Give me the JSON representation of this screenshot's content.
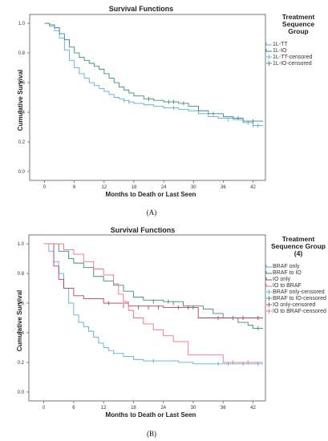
{
  "chart_data": [
    {
      "type": "line",
      "panel_label": "(A)",
      "title": "Survival Functions",
      "xlabel": "Months to Death or Last Seen",
      "ylabel": "Cumulative Survival",
      "xticks": [
        0,
        6,
        12,
        18,
        24,
        30,
        36,
        42
      ],
      "yticks": [
        "0.0",
        "0.2",
        "0.4",
        "0.6",
        "0.8",
        "1.0"
      ],
      "xlim": [
        -3,
        44.5
      ],
      "ylim": [
        -0.06,
        1.06
      ],
      "legend": {
        "title_lines": [
          "Treatment",
          "Sequence",
          "Group"
        ],
        "placement": "right",
        "entries": [
          {
            "label": "1L-TT",
            "color": "#5aaee0",
            "kind": "line"
          },
          {
            "label": "1L-IO",
            "color": "#3a8a7a",
            "kind": "line"
          },
          {
            "label": "1L-TT-censored",
            "color": "#5aaee0",
            "kind": "censor"
          },
          {
            "label": "1L-IO-censored",
            "color": "#3a8a7a",
            "kind": "censor"
          }
        ]
      },
      "series": [
        {
          "color": "#5aaee0",
          "steps": [
            [
              0,
              1.0
            ],
            [
              1,
              0.98
            ],
            [
              2,
              0.95
            ],
            [
              3,
              0.9
            ],
            [
              4,
              0.82
            ],
            [
              5,
              0.75
            ],
            [
              6,
              0.7
            ],
            [
              7,
              0.66
            ],
            [
              8,
              0.63
            ],
            [
              9,
              0.6
            ],
            [
              10,
              0.58
            ],
            [
              11,
              0.56
            ],
            [
              12,
              0.54
            ],
            [
              13,
              0.52
            ],
            [
              14,
              0.5
            ],
            [
              15,
              0.49
            ],
            [
              16,
              0.48
            ],
            [
              17,
              0.47
            ],
            [
              18,
              0.46
            ],
            [
              20,
              0.45
            ],
            [
              22,
              0.44
            ],
            [
              24,
              0.43
            ],
            [
              27,
              0.42
            ],
            [
              29,
              0.41
            ],
            [
              31,
              0.39
            ],
            [
              33,
              0.37
            ],
            [
              35,
              0.36
            ],
            [
              38,
              0.35
            ],
            [
              40,
              0.33
            ],
            [
              42,
              0.31
            ],
            [
              44,
              0.31
            ]
          ],
          "censor": [
            [
              16,
              0.48
            ],
            [
              17,
              0.47
            ],
            [
              26,
              0.43
            ],
            [
              37,
              0.35
            ],
            [
              41,
              0.33
            ],
            [
              42,
              0.31
            ],
            [
              43,
              0.31
            ]
          ]
        },
        {
          "color": "#3a8a7a",
          "steps": [
            [
              0,
              1.0
            ],
            [
              1,
              0.99
            ],
            [
              2,
              0.97
            ],
            [
              3,
              0.93
            ],
            [
              4,
              0.89
            ],
            [
              5,
              0.84
            ],
            [
              6,
              0.8
            ],
            [
              7,
              0.77
            ],
            [
              8,
              0.75
            ],
            [
              9,
              0.73
            ],
            [
              10,
              0.71
            ],
            [
              11,
              0.69
            ],
            [
              12,
              0.66
            ],
            [
              13,
              0.63
            ],
            [
              14,
              0.6
            ],
            [
              15,
              0.57
            ],
            [
              16,
              0.55
            ],
            [
              17,
              0.53
            ],
            [
              18,
              0.51
            ],
            [
              20,
              0.49
            ],
            [
              22,
              0.48
            ],
            [
              24,
              0.47
            ],
            [
              27,
              0.46
            ],
            [
              29,
              0.44
            ],
            [
              31,
              0.41
            ],
            [
              33,
              0.39
            ],
            [
              36,
              0.37
            ],
            [
              38,
              0.36
            ],
            [
              40,
              0.34
            ],
            [
              44,
              0.34
            ]
          ],
          "censor": [
            [
              21,
              0.49
            ],
            [
              25,
              0.47
            ],
            [
              26,
              0.47
            ],
            [
              28,
              0.46
            ],
            [
              34,
              0.39
            ],
            [
              39,
              0.36
            ],
            [
              42,
              0.34
            ]
          ]
        }
      ]
    },
    {
      "type": "line",
      "panel_label": "(B)",
      "title": "Survival Functions",
      "xlabel": "Months to Death or Last Seen",
      "ylabel": "Cumulative Survival",
      "xticks": [
        0,
        6,
        12,
        18,
        24,
        30,
        36,
        42
      ],
      "yticks": [
        "0.0",
        "0.2",
        "0.4",
        "0.6",
        "0.8",
        "1.0"
      ],
      "xlim": [
        -3,
        44.5
      ],
      "ylim": [
        -0.06,
        1.06
      ],
      "legend": {
        "title_lines": [
          "Treatment",
          "Sequence Group",
          "(4)"
        ],
        "placement": "right",
        "entries": [
          {
            "label": "BRAF only",
            "color": "#5aaee0",
            "kind": "line"
          },
          {
            "label": "BRAF to IO",
            "color": "#3a8a7a",
            "kind": "line"
          },
          {
            "label": "IO only",
            "color": "#b83a6a",
            "kind": "line"
          },
          {
            "label": "IO to BRAF",
            "color": "#f07080",
            "kind": "line"
          },
          {
            "label": "BRAF only-censored",
            "color": "#5aaee0",
            "kind": "censor"
          },
          {
            "label": "BRAF to IO-censored",
            "color": "#3a8a7a",
            "kind": "censor"
          },
          {
            "label": "IO only-censored",
            "color": "#b83a6a",
            "kind": "censor"
          },
          {
            "label": "IO to BRAF-censored",
            "color": "#f07080",
            "kind": "censor"
          }
        ]
      },
      "series": [
        {
          "color": "#5aaee0",
          "steps": [
            [
              0,
              1.0
            ],
            [
              1,
              0.95
            ],
            [
              2,
              0.88
            ],
            [
              3,
              0.8
            ],
            [
              4,
              0.7
            ],
            [
              5,
              0.6
            ],
            [
              6,
              0.52
            ],
            [
              7,
              0.47
            ],
            [
              8,
              0.44
            ],
            [
              9,
              0.41
            ],
            [
              10,
              0.37
            ],
            [
              11,
              0.33
            ],
            [
              12,
              0.3
            ],
            [
              13,
              0.28
            ],
            [
              14,
              0.26
            ],
            [
              16,
              0.24
            ],
            [
              18,
              0.22
            ],
            [
              20,
              0.21
            ],
            [
              24,
              0.21
            ],
            [
              27,
              0.2
            ],
            [
              30,
              0.19
            ],
            [
              44,
              0.19
            ]
          ],
          "censor": [
            [
              22,
              0.21
            ],
            [
              35,
              0.19
            ],
            [
              37,
              0.19
            ],
            [
              40,
              0.19
            ],
            [
              43,
              0.19
            ]
          ]
        },
        {
          "color": "#3a8a7a",
          "steps": [
            [
              0,
              1.0
            ],
            [
              3,
              0.95
            ],
            [
              5,
              0.9
            ],
            [
              6,
              0.87
            ],
            [
              8,
              0.84
            ],
            [
              10,
              0.78
            ],
            [
              12,
              0.75
            ],
            [
              14,
              0.72
            ],
            [
              16,
              0.68
            ],
            [
              18,
              0.64
            ],
            [
              20,
              0.62
            ],
            [
              24,
              0.61
            ],
            [
              28,
              0.58
            ],
            [
              32,
              0.56
            ],
            [
              34,
              0.53
            ],
            [
              36,
              0.5
            ],
            [
              39,
              0.47
            ],
            [
              41,
              0.45
            ],
            [
              42,
              0.43
            ],
            [
              44,
              0.43
            ]
          ],
          "censor": [
            [
              22,
              0.61
            ],
            [
              25,
              0.61
            ],
            [
              26,
              0.6
            ],
            [
              30,
              0.57
            ],
            [
              38,
              0.5
            ],
            [
              43,
              0.43
            ]
          ]
        },
        {
          "color": "#b83a6a",
          "steps": [
            [
              0,
              1.0
            ],
            [
              2,
              0.85
            ],
            [
              3,
              0.76
            ],
            [
              4,
              0.7
            ],
            [
              6,
              0.65
            ],
            [
              8,
              0.63
            ],
            [
              12,
              0.6
            ],
            [
              14,
              0.6
            ],
            [
              17,
              0.58
            ],
            [
              24,
              0.57
            ],
            [
              30,
              0.57
            ],
            [
              31,
              0.5
            ],
            [
              44,
              0.5
            ]
          ],
          "censor": [
            [
              13,
              0.6
            ],
            [
              16,
              0.58
            ],
            [
              19,
              0.57
            ],
            [
              21,
              0.57
            ],
            [
              23,
              0.57
            ],
            [
              27,
              0.57
            ],
            [
              29,
              0.57
            ],
            [
              35,
              0.5
            ],
            [
              40,
              0.5
            ],
            [
              43,
              0.5
            ]
          ]
        },
        {
          "color": "#f07080",
          "steps": [
            [
              0,
              1.0
            ],
            [
              4,
              0.96
            ],
            [
              6,
              0.93
            ],
            [
              8,
              0.88
            ],
            [
              10,
              0.83
            ],
            [
              12,
              0.79
            ],
            [
              14,
              0.73
            ],
            [
              15,
              0.66
            ],
            [
              16,
              0.61
            ],
            [
              17,
              0.55
            ],
            [
              18,
              0.5
            ],
            [
              20,
              0.46
            ],
            [
              22,
              0.42
            ],
            [
              24,
              0.38
            ],
            [
              26,
              0.34
            ],
            [
              29,
              0.25
            ],
            [
              36,
              0.2
            ],
            [
              44,
              0.2
            ]
          ],
          "censor": [
            [
              38,
              0.2
            ],
            [
              41,
              0.2
            ]
          ]
        }
      ]
    }
  ]
}
